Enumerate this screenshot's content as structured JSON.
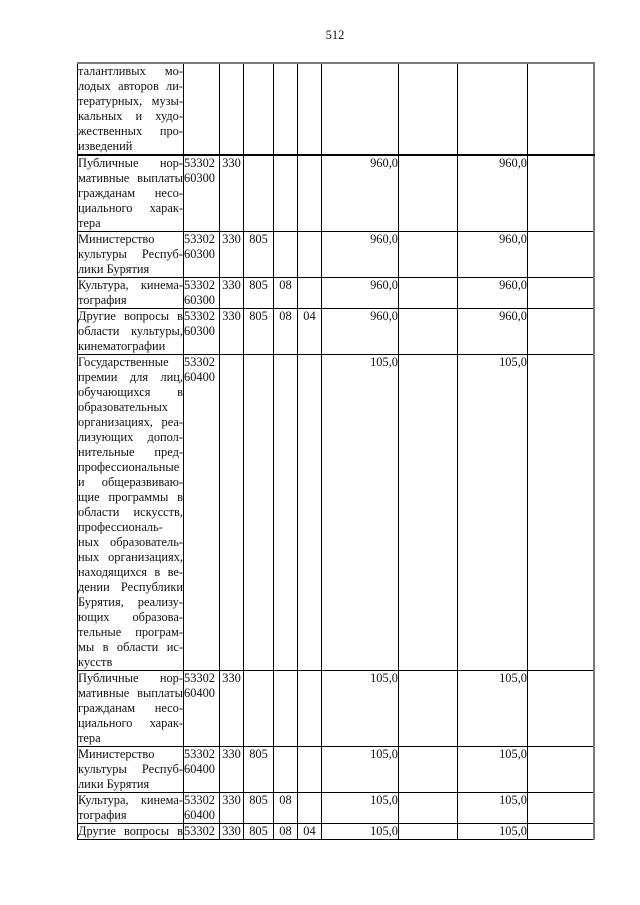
{
  "page": {
    "number": "512"
  },
  "table": {
    "rows": [
      {
        "desc": "талантливых мо-\nлодых авторов ли-\nтературных, музы-\nкальных и худо-\nжественных про-\nизведений",
        "code": "",
        "vr": "",
        "grbs": "",
        "rz": "",
        "pr": "",
        "a1": "",
        "e1": "",
        "a2": "",
        "e2": ""
      },
      {
        "desc": "Публичные нор-\nмативные выплаты\nгражданам несо-\nциального харак-\nтера",
        "code": "53302\n60300",
        "vr": "330",
        "grbs": "",
        "rz": "",
        "pr": "",
        "a1": "960,0",
        "e1": "",
        "a2": "960,0",
        "e2": ""
      },
      {
        "desc": "Министерство\nкультуры Респуб-\nлики Бурятия",
        "code": "53302\n60300",
        "vr": "330",
        "grbs": "805",
        "rz": "",
        "pr": "",
        "a1": "960,0",
        "e1": "",
        "a2": "960,0",
        "e2": ""
      },
      {
        "desc": "Культура, кинема-\nтография",
        "code": "53302\n60300",
        "vr": "330",
        "grbs": "805",
        "rz": "08",
        "pr": "",
        "a1": "960,0",
        "e1": "",
        "a2": "960,0",
        "e2": ""
      },
      {
        "desc": "Другие вопросы в\nобласти культуры,\nкинематографии",
        "code": "53302\n60300",
        "vr": "330",
        "grbs": "805",
        "rz": "08",
        "pr": "04",
        "a1": "960,0",
        "e1": "",
        "a2": "960,0",
        "e2": ""
      },
      {
        "desc": "Государственные\nпремии для лиц,\nобучающихся в\nобразовательных\nорганизациях, реа-\nлизующих допол-\nнительные пред-\nпрофессиональные\nи общеразвиваю-\nщие программы в\nобласти искусств,\nпрофессиональ-\nных образователь-\nных организациях,\nнаходящихся в ве-\nдении Республики\nБурятия, реализу-\nющих образова-\nтельные програм-\nмы в области ис-\nкусств",
        "code": "53302\n60400",
        "vr": "",
        "grbs": "",
        "rz": "",
        "pr": "",
        "a1": "105,0",
        "e1": "",
        "a2": "105,0",
        "e2": ""
      },
      {
        "desc": "Публичные нор-\nмативные выплаты\nгражданам несо-\nциального харак-\nтера",
        "code": "53302\n60400",
        "vr": "330",
        "grbs": "",
        "rz": "",
        "pr": "",
        "a1": "105,0",
        "e1": "",
        "a2": "105,0",
        "e2": ""
      },
      {
        "desc": "Министерство\nкультуры Респуб-\nлики Бурятия",
        "code": "53302\n60400",
        "vr": "330",
        "grbs": "805",
        "rz": "",
        "pr": "",
        "a1": "105,0",
        "e1": "",
        "a2": "105,0",
        "e2": ""
      },
      {
        "desc": "Культура, кинема-\nтография",
        "code": "53302\n60400",
        "vr": "330",
        "grbs": "805",
        "rz": "08",
        "pr": "",
        "a1": "105,0",
        "e1": "",
        "a2": "105,0",
        "e2": ""
      },
      {
        "desc": "Другие вопросы в",
        "code": "53302",
        "vr": "330",
        "grbs": "805",
        "rz": "08",
        "pr": "04",
        "a1": "105,0",
        "e1": "",
        "a2": "105,0",
        "e2": ""
      }
    ]
  }
}
